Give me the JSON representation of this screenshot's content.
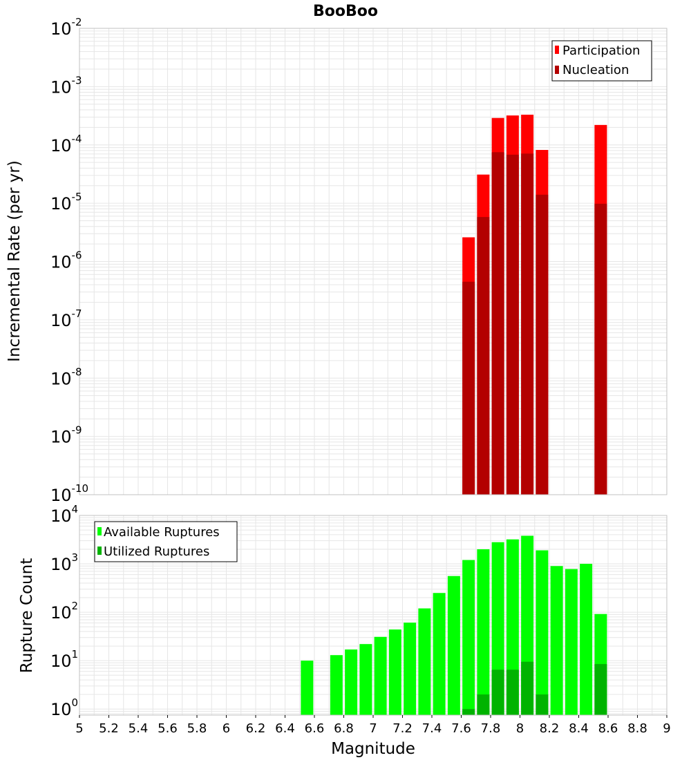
{
  "title": "BooBoo",
  "colors": {
    "participation": "#ff0000",
    "nucleation": "#b30000",
    "available": "#00ff00",
    "utilized": "#00b300",
    "grid": "#e6e6e6",
    "frame": "#c0c0c0"
  },
  "chart_data": [
    {
      "type": "bar",
      "panel": "top",
      "ylabel": "Incremental Rate (per yr)",
      "yscale": "log",
      "ylim": [
        1e-10,
        0.01
      ],
      "yticks": [
        {
          "base": "10",
          "exp": "-10"
        },
        {
          "base": "10",
          "exp": "-9"
        },
        {
          "base": "10",
          "exp": "-8"
        },
        {
          "base": "10",
          "exp": "-7"
        },
        {
          "base": "10",
          "exp": "-6"
        },
        {
          "base": "10",
          "exp": "-5"
        },
        {
          "base": "10",
          "exp": "-4"
        },
        {
          "base": "10",
          "exp": "-3"
        },
        {
          "base": "10",
          "exp": "-2"
        }
      ],
      "legend_position": "top-right",
      "series": [
        {
          "name": "Participation",
          "color": "#ff0000",
          "x": [
            7.65,
            7.75,
            7.85,
            7.95,
            8.05,
            8.15,
            8.55
          ],
          "values": [
            2.6e-06,
            3.1e-05,
            0.00029,
            0.00032,
            0.00033,
            8.2e-05,
            0.00022
          ]
        },
        {
          "name": "Nucleation",
          "color": "#b30000",
          "x": [
            7.65,
            7.75,
            7.85,
            7.95,
            8.05,
            8.15,
            8.55
          ],
          "values": [
            4.5e-07,
            5.8e-06,
            7.5e-05,
            6.8e-05,
            7.1e-05,
            1.4e-05,
            9.8e-06
          ]
        }
      ]
    },
    {
      "type": "bar",
      "panel": "bottom",
      "xlabel": "Magnitude",
      "ylabel": "Rupture Count",
      "yscale": "log",
      "ylim": [
        0.75,
        10000
      ],
      "xlim": [
        5,
        9
      ],
      "xticks": [
        "5",
        "5.2",
        "5.4",
        "5.6",
        "5.8",
        "6",
        "6.2",
        "6.4",
        "6.6",
        "6.8",
        "7",
        "7.2",
        "7.4",
        "7.6",
        "7.8",
        "8",
        "8.2",
        "8.4",
        "8.6",
        "8.8",
        "9"
      ],
      "yticks": [
        {
          "base": "10",
          "exp": "0"
        },
        {
          "base": "10",
          "exp": "1"
        },
        {
          "base": "10",
          "exp": "2"
        },
        {
          "base": "10",
          "exp": "3"
        },
        {
          "base": "10",
          "exp": "4"
        }
      ],
      "legend_position": "top-left",
      "series": [
        {
          "name": "Available Ruptures",
          "color": "#00ff00",
          "x": [
            6.55,
            6.75,
            6.85,
            6.95,
            7.05,
            7.15,
            7.25,
            7.35,
            7.45,
            7.55,
            7.65,
            7.75,
            7.85,
            7.95,
            8.05,
            8.15,
            8.25,
            8.35,
            8.45,
            8.55
          ],
          "values": [
            10,
            13,
            17,
            22,
            31,
            44,
            61,
            120,
            250,
            560,
            1200,
            2000,
            2800,
            3200,
            3800,
            1900,
            900,
            780,
            1000,
            92
          ]
        },
        {
          "name": "Utilized Ruptures",
          "color": "#00b300",
          "x": [
            7.65,
            7.75,
            7.85,
            7.95,
            8.05,
            8.15,
            8.55
          ],
          "values": [
            1,
            2,
            6.5,
            6.5,
            9.5,
            2,
            8.5
          ]
        }
      ]
    }
  ]
}
